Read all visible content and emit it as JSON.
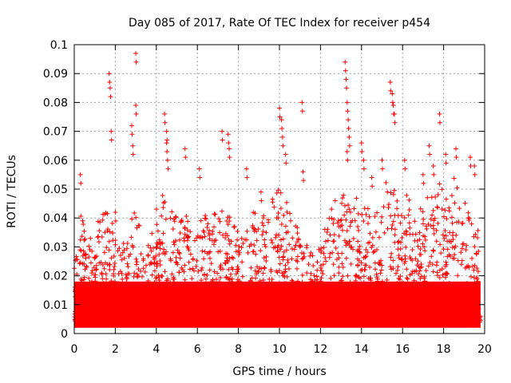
{
  "chart_data": {
    "type": "scatter",
    "title": "Day 085 of 2017, Rate Of TEC Index for receiver p454",
    "xlabel": "GPS time / hours",
    "ylabel": "ROTI / TECUs",
    "xlim": [
      0,
      20
    ],
    "ylim": [
      0,
      0.1
    ],
    "xticks": [
      0,
      2,
      4,
      6,
      8,
      10,
      12,
      14,
      16,
      18,
      20
    ],
    "xtick_labels": [
      "0",
      "2",
      "4",
      "6",
      "8",
      "10",
      "12",
      "14",
      "16",
      "18",
      "20"
    ],
    "yticks": [
      0,
      0.01,
      0.02,
      0.03,
      0.04,
      0.05,
      0.06,
      0.07,
      0.08,
      0.09,
      0.1
    ],
    "ytick_labels": [
      "0",
      "0.01",
      "0.02",
      "0.03",
      "0.04",
      "0.05",
      "0.06",
      "0.07",
      "0.08",
      "0.09",
      "0.1"
    ],
    "grid": true,
    "marker": "+",
    "series": [
      {
        "name": "ROTI",
        "color": "#ff0000",
        "background_band": {
          "x_range": [
            0,
            19.8
          ],
          "y_range": [
            0.002,
            0.018
          ]
        },
        "envelope": [
          {
            "x": 0.0,
            "y": 0.025
          },
          {
            "x": 0.3,
            "y": 0.045
          },
          {
            "x": 0.6,
            "y": 0.03
          },
          {
            "x": 1.0,
            "y": 0.038
          },
          {
            "x": 1.4,
            "y": 0.045
          },
          {
            "x": 1.8,
            "y": 0.04
          },
          {
            "x": 2.2,
            "y": 0.03
          },
          {
            "x": 2.6,
            "y": 0.035
          },
          {
            "x": 3.0,
            "y": 0.045
          },
          {
            "x": 3.4,
            "y": 0.03
          },
          {
            "x": 3.8,
            "y": 0.038
          },
          {
            "x": 4.2,
            "y": 0.05
          },
          {
            "x": 4.6,
            "y": 0.045
          },
          {
            "x": 5.0,
            "y": 0.04
          },
          {
            "x": 5.4,
            "y": 0.047
          },
          {
            "x": 5.8,
            "y": 0.03
          },
          {
            "x": 6.2,
            "y": 0.042
          },
          {
            "x": 6.6,
            "y": 0.045
          },
          {
            "x": 7.0,
            "y": 0.04
          },
          {
            "x": 7.4,
            "y": 0.05
          },
          {
            "x": 7.8,
            "y": 0.038
          },
          {
            "x": 8.2,
            "y": 0.035
          },
          {
            "x": 8.6,
            "y": 0.045
          },
          {
            "x": 9.0,
            "y": 0.04
          },
          {
            "x": 9.4,
            "y": 0.042
          },
          {
            "x": 9.8,
            "y": 0.05
          },
          {
            "x": 10.2,
            "y": 0.052
          },
          {
            "x": 10.6,
            "y": 0.04
          },
          {
            "x": 11.0,
            "y": 0.035
          },
          {
            "x": 11.4,
            "y": 0.03
          },
          {
            "x": 11.8,
            "y": 0.025
          },
          {
            "x": 12.2,
            "y": 0.04
          },
          {
            "x": 12.6,
            "y": 0.045
          },
          {
            "x": 13.0,
            "y": 0.05
          },
          {
            "x": 13.4,
            "y": 0.045
          },
          {
            "x": 13.8,
            "y": 0.048
          },
          {
            "x": 14.2,
            "y": 0.045
          },
          {
            "x": 14.6,
            "y": 0.04
          },
          {
            "x": 15.0,
            "y": 0.05
          },
          {
            "x": 15.4,
            "y": 0.055
          },
          {
            "x": 15.8,
            "y": 0.045
          },
          {
            "x": 16.2,
            "y": 0.05
          },
          {
            "x": 16.6,
            "y": 0.04
          },
          {
            "x": 17.0,
            "y": 0.045
          },
          {
            "x": 17.4,
            "y": 0.05
          },
          {
            "x": 17.8,
            "y": 0.052
          },
          {
            "x": 18.2,
            "y": 0.05
          },
          {
            "x": 18.6,
            "y": 0.055
          },
          {
            "x": 19.0,
            "y": 0.045
          },
          {
            "x": 19.4,
            "y": 0.05
          },
          {
            "x": 19.8,
            "y": 0.03
          }
        ],
        "spikes": [
          {
            "x": 0.3,
            "y": 0.055
          },
          {
            "x": 1.7,
            "y": 0.09
          },
          {
            "x": 1.75,
            "y": 0.085
          },
          {
            "x": 1.8,
            "y": 0.07
          },
          {
            "x": 2.0,
            "y": 0.042
          },
          {
            "x": 2.8,
            "y": 0.072
          },
          {
            "x": 2.85,
            "y": 0.065
          },
          {
            "x": 3.0,
            "y": 0.097
          },
          {
            "x": 3.0,
            "y": 0.079
          },
          {
            "x": 4.4,
            "y": 0.076
          },
          {
            "x": 4.5,
            "y": 0.07
          },
          {
            "x": 4.5,
            "y": 0.066
          },
          {
            "x": 4.55,
            "y": 0.06
          },
          {
            "x": 5.4,
            "y": 0.064
          },
          {
            "x": 6.1,
            "y": 0.057
          },
          {
            "x": 7.2,
            "y": 0.07
          },
          {
            "x": 7.5,
            "y": 0.069
          },
          {
            "x": 7.55,
            "y": 0.064
          },
          {
            "x": 8.4,
            "y": 0.057
          },
          {
            "x": 9.1,
            "y": 0.049
          },
          {
            "x": 10.0,
            "y": 0.078
          },
          {
            "x": 10.1,
            "y": 0.074
          },
          {
            "x": 10.15,
            "y": 0.068
          },
          {
            "x": 10.3,
            "y": 0.062
          },
          {
            "x": 11.1,
            "y": 0.08
          },
          {
            "x": 11.15,
            "y": 0.056
          },
          {
            "x": 13.2,
            "y": 0.094
          },
          {
            "x": 13.25,
            "y": 0.088
          },
          {
            "x": 13.3,
            "y": 0.08
          },
          {
            "x": 13.35,
            "y": 0.074
          },
          {
            "x": 13.4,
            "y": 0.068
          },
          {
            "x": 13.3,
            "y": 0.063
          },
          {
            "x": 14.0,
            "y": 0.066
          },
          {
            "x": 14.1,
            "y": 0.06
          },
          {
            "x": 14.5,
            "y": 0.054
          },
          {
            "x": 15.0,
            "y": 0.06
          },
          {
            "x": 15.4,
            "y": 0.087
          },
          {
            "x": 15.5,
            "y": 0.083
          },
          {
            "x": 15.55,
            "y": 0.079
          },
          {
            "x": 15.6,
            "y": 0.076
          },
          {
            "x": 16.1,
            "y": 0.06
          },
          {
            "x": 17.0,
            "y": 0.055
          },
          {
            "x": 17.3,
            "y": 0.065
          },
          {
            "x": 17.5,
            "y": 0.058
          },
          {
            "x": 17.8,
            "y": 0.076
          },
          {
            "x": 18.1,
            "y": 0.062
          },
          {
            "x": 18.6,
            "y": 0.064
          },
          {
            "x": 19.3,
            "y": 0.061
          },
          {
            "x": 19.5,
            "y": 0.058
          }
        ]
      }
    ]
  }
}
